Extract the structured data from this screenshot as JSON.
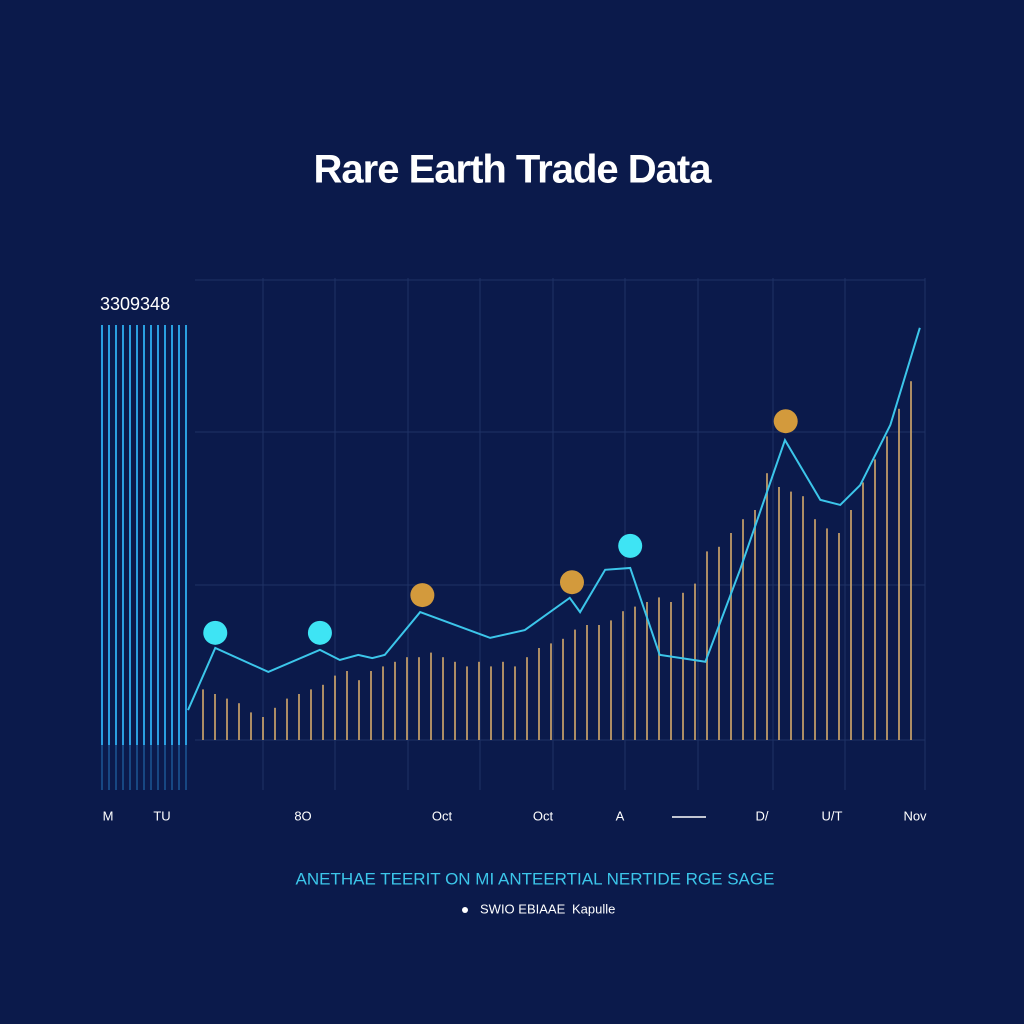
{
  "chart_data": {
    "type": "line",
    "title": "Rare Earth Trade Data",
    "y_label": "3309348",
    "caption": "ANETHAE TEERIT ON MI ANTEERTIAL NERTIDE RGE SAGE",
    "legend_text": [
      "SWIO EBIAAE",
      "Kapulle"
    ],
    "x_labels": [
      "M",
      "TU",
      "8O",
      "Oct",
      "Oct",
      "A",
      "D/",
      "U/T",
      "Nov"
    ],
    "xlim": [
      0,
      100
    ],
    "ylim": [
      0,
      100
    ],
    "series": [
      {
        "color": "#3cc6ea",
        "x": [
          0,
          3.7,
          10.9,
          17.9,
          20.6,
          23.1,
          25,
          26.7,
          31.5,
          41,
          45.7,
          51.8,
          53.2,
          56.6,
          60,
          64,
          70.2,
          74.9,
          81,
          85.8,
          88.5,
          91.2,
          95.3,
          99.3
        ],
        "values": [
          6.5,
          20,
          14.8,
          19.6,
          17.4,
          18.5,
          17.8,
          18.5,
          27.8,
          22.2,
          23.9,
          30.9,
          27.8,
          37,
          37.4,
          18.5,
          17,
          37,
          65.2,
          52.2,
          51.1,
          55.4,
          68.5,
          89.6
        ]
      }
    ],
    "points": {
      "x": [
        3.7,
        17.9,
        31.8,
        52.1,
        60,
        81.1
      ],
      "values": [
        23.3,
        23.3,
        31.5,
        34.3,
        42.2,
        69.3
      ],
      "colors": [
        "#3ee4f4",
        "#3ee4f4",
        "#d39a3c",
        "#d39a3c",
        "#3ee4f4",
        "#d39a3c"
      ]
    },
    "bars": {
      "color": "#c9a26a",
      "values": [
        11,
        10,
        9,
        8,
        6,
        5,
        7,
        9,
        10,
        11,
        12,
        14,
        15,
        13,
        15,
        16,
        17,
        18,
        18,
        19,
        18,
        17,
        16,
        17,
        16,
        17,
        16,
        18,
        20,
        21,
        22,
        24,
        25,
        25,
        26,
        28,
        29,
        30,
        31,
        30,
        32,
        34,
        41,
        42,
        45,
        48,
        50,
        58,
        55,
        54,
        53,
        48,
        46,
        45,
        50,
        56,
        61,
        66,
        72,
        78
      ]
    }
  }
}
